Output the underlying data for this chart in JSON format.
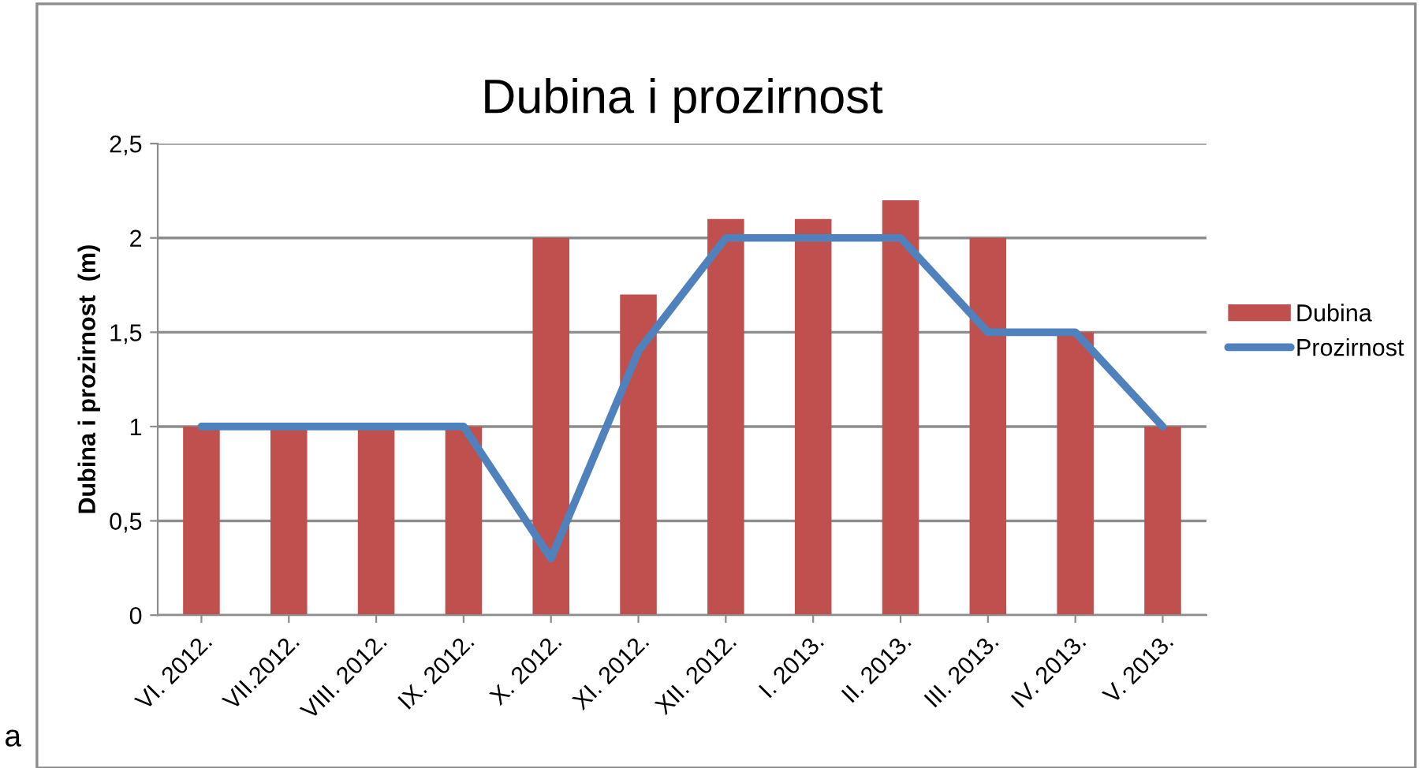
{
  "chart_data": {
    "type": "bar",
    "title": "Dubina i prozirnost",
    "ylabel": "Dubina i prozirnost  (m)",
    "categories": [
      "VI. 2012.",
      "VII.2012.",
      "VIII. 2012.",
      "IX. 2012.",
      "X. 2012.",
      "XI. 2012.",
      "XII. 2012.",
      "I. 2013.",
      "II. 2013.",
      "III. 2013.",
      "IV. 2013.",
      "V. 2013."
    ],
    "series": [
      {
        "name": "Dubina",
        "color": "#c0504d",
        "values": [
          1,
          1,
          1,
          1,
          2,
          1.7,
          2.1,
          2.1,
          2.2,
          2,
          1.5,
          1
        ]
      },
      {
        "name": "Prozirnost",
        "type": "line",
        "color": "#4f81bd",
        "values": [
          1,
          1,
          1,
          1,
          0.3,
          1.4,
          2,
          2,
          2,
          1.5,
          1.5,
          1
        ]
      }
    ],
    "ylim": [
      0,
      2.5
    ],
    "yticks": [
      0,
      {
        "value": 0.5,
        "label": "0,5"
      },
      1,
      {
        "value": 1.5,
        "label": "1,5"
      },
      2,
      {
        "value": 2.5,
        "label": "2,5"
      }
    ],
    "grid": "y",
    "legend": "right",
    "marker": "none",
    "line_style": "solid",
    "annotations": [
      "a"
    ]
  }
}
